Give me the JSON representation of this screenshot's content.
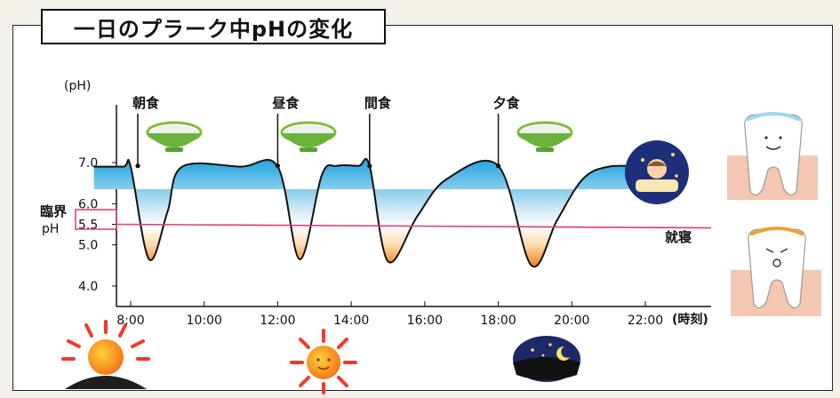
{
  "chart_data": {
    "type": "line",
    "title": "一日のプラーク中pHの変化",
    "ylabel": "(pH)",
    "xlabel": "(時刻)",
    "ylim": [
      4.0,
      7.0
    ],
    "yticks": [
      "7.0",
      "6.0",
      "5.5",
      "5.0",
      "4.0"
    ],
    "xticks": [
      "8:00",
      "10:00",
      "12:00",
      "14:00",
      "16:00",
      "18:00",
      "20:00",
      "22:00"
    ],
    "critical_label": "臨界\npH",
    "critical_ph": 5.5,
    "events": [
      {
        "label": "朝食",
        "time": 8.0
      },
      {
        "label": "昼食",
        "time": 12.0
      },
      {
        "label": "間食",
        "time": 14.5
      },
      {
        "label": "夕食",
        "time": 18.0
      }
    ],
    "sleep_label": "就寝",
    "x": [
      7.0,
      7.8,
      8.0,
      8.5,
      9.0,
      9.4,
      11.0,
      12.0,
      12.6,
      13.2,
      13.6,
      14.2,
      14.5,
      15.0,
      15.8,
      16.6,
      18.0,
      18.9,
      19.6,
      20.3,
      21.0,
      22.0,
      22.7
    ],
    "y": [
      6.9,
      6.9,
      6.9,
      4.65,
      5.8,
      6.9,
      6.9,
      6.9,
      4.65,
      6.7,
      6.92,
      6.92,
      6.92,
      4.6,
      5.7,
      6.6,
      6.92,
      4.5,
      5.6,
      6.6,
      6.9,
      6.9,
      6.9
    ]
  },
  "colors": {
    "critical_line": "#e8347a",
    "upper_fill": "#2aa8e0",
    "lower_fill": "#f08018",
    "curve": "#111111"
  },
  "icons": [
    "rice-bowl-icon",
    "sleeping-child-icon",
    "healthy-tooth-icon",
    "decayed-tooth-icon",
    "sunrise-icon",
    "sun-icon",
    "night-icon"
  ]
}
